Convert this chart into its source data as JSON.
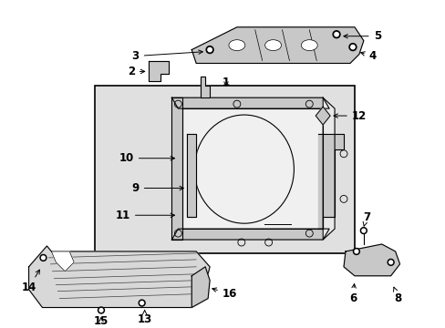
{
  "bg_color": "#ffffff",
  "line_color": "#000000",
  "box_bg": "#e0e0e0",
  "part_gray": "#c8c8c8",
  "part_light": "#e8e8e8"
}
